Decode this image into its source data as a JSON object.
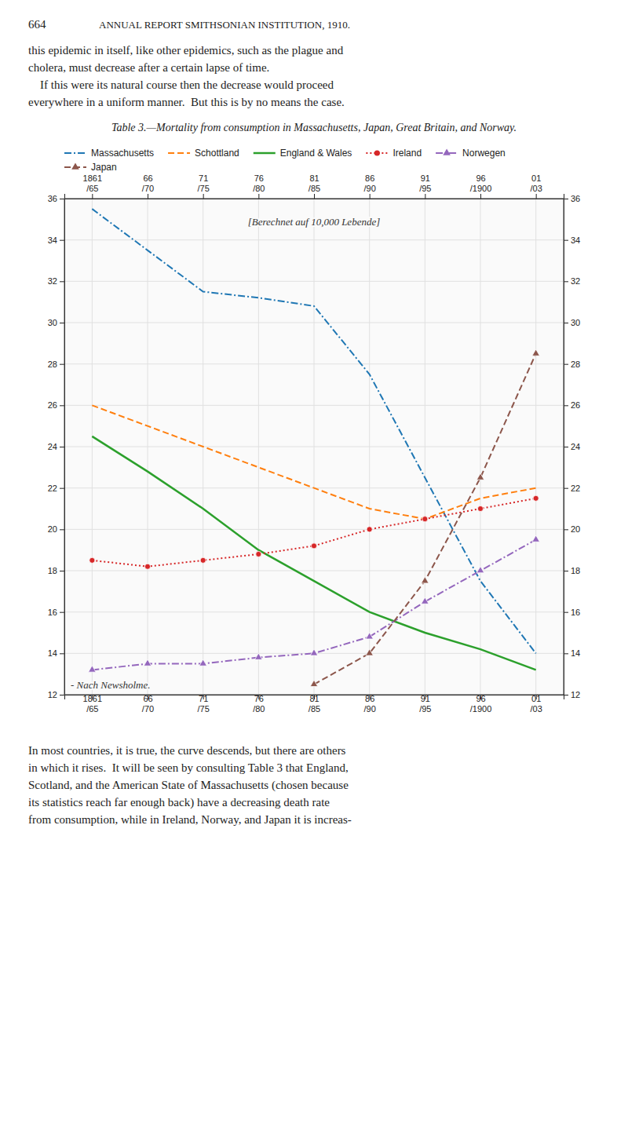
{
  "page": {
    "page_number": "664",
    "header": "ANNUAL REPORT SMITHSONIAN INSTITUTION, 1910.",
    "text_before": [
      "this epidemic in itself, like other epidemics, such as the plague and",
      "cholera, must decrease after a certain lapse of time.",
      "    If this were its natural course then the decrease would proceed",
      "everywhere in a uniform manner.  But this is by no means the case."
    ],
    "text_after": [
      "In most countries, it is true, the curve descends, but there are others",
      "in which it rises.  It will be seen by consulting Table 3 that England,",
      "Scotland, and the American State of Massachusetts (chosen because",
      "its statistics reach far enough back) have a decreasing death rate",
      "from consumption, while in Ireland, Norway, and Japan it is increas-"
    ]
  },
  "chart_data": {
    "type": "line",
    "title": "Table 3.—Mortality from consumption in Massachusetts, Japan, Great Britain, and Norway.",
    "categories": [
      "1861/65",
      "66/70",
      "71/75",
      "76/80",
      "81/85",
      "86/90",
      "91/95",
      "96/1900",
      "01/03"
    ],
    "series": [
      {
        "name": "Massachusetts",
        "line_style": "dashdot",
        "values": [
          35.5,
          33.5,
          31.5,
          31.2,
          30.8,
          27.5,
          22.5,
          17.5,
          14.0
        ]
      },
      {
        "name": "Schottland",
        "line_style": "dashed",
        "values": [
          26.0,
          25.0,
          24.0,
          23.0,
          22.0,
          21.0,
          20.5,
          21.5,
          22.0
        ]
      },
      {
        "name": "England & Wales",
        "line_style": "solid",
        "values": [
          24.5,
          22.8,
          21.0,
          19.0,
          17.5,
          16.0,
          15.0,
          14.2,
          13.2
        ]
      },
      {
        "name": "Ireland",
        "line_style": "dotted",
        "marker": "circle",
        "values": [
          18.5,
          18.2,
          18.5,
          18.8,
          19.2,
          20.0,
          20.5,
          21.0,
          21.5
        ]
      },
      {
        "name": "Norwegen",
        "line_style": "dashdot",
        "marker": "triangle",
        "values": [
          13.2,
          13.5,
          13.5,
          13.8,
          14.0,
          14.8,
          16.5,
          18.0,
          19.5
        ]
      },
      {
        "name": "Japan",
        "line_style": "dashed",
        "marker": "triangle",
        "values": [
          null,
          null,
          null,
          null,
          12.5,
          14.0,
          17.5,
          22.5,
          28.5
        ]
      }
    ],
    "ylim": [
      12,
      36
    ],
    "yticks": [
      12,
      14,
      16,
      18,
      20,
      22,
      24,
      26,
      28,
      30,
      32,
      34,
      36
    ],
    "grid": true,
    "annotations": [
      "[Berechnet auf 10,000 Lebende]",
      "- Nach Newsholme."
    ]
  }
}
